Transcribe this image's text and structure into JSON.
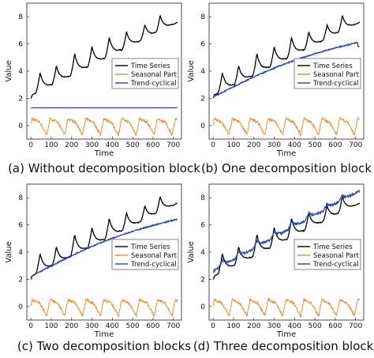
{
  "figure": {
    "colors": {
      "time_series": "#000000",
      "seasonal": "#ee8a2a",
      "trend": "#2244bb"
    }
  },
  "chart_data": [
    {
      "type": "line",
      "caption": "(a) Without decomposition block",
      "xlabel": "Time",
      "ylabel": "Value",
      "xlim": [
        -20,
        740
      ],
      "ylim": [
        -1,
        9
      ],
      "xticks": [
        0,
        100,
        200,
        300,
        400,
        500,
        600,
        700
      ],
      "yticks": [
        0,
        2,
        4,
        6,
        8
      ],
      "grid": false,
      "legend_position": "center-right",
      "series": [
        {
          "name": "Time Series",
          "color": "#000000"
        },
        {
          "name": "Seasonal Part",
          "color": "#ee8a2a"
        },
        {
          "name": "Trend-cyclical",
          "color": "#2244bb"
        }
      ],
      "trend_model": "flat",
      "trend_level": 1.3
    },
    {
      "type": "line",
      "caption": "(b) One decomposition block",
      "xlabel": "Time",
      "ylabel": "Value",
      "xlim": [
        -20,
        740
      ],
      "ylim": [
        -1,
        9
      ],
      "xticks": [
        0,
        100,
        200,
        300,
        400,
        500,
        600,
        700
      ],
      "yticks": [
        0,
        2,
        4,
        6,
        8
      ],
      "grid": false,
      "legend_position": "center-right",
      "series": [
        {
          "name": "Time Series",
          "color": "#000000"
        },
        {
          "name": "Seasonal Part",
          "color": "#ee8a2a"
        },
        {
          "name": "Trend-cyclical",
          "color": "#2244bb"
        }
      ],
      "trend_model": "smooth",
      "trend_start": 2.1,
      "trend_end": 6.6
    },
    {
      "type": "line",
      "caption": "(c) Two decomposition blocks",
      "xlabel": "Time",
      "ylabel": "Value",
      "xlim": [
        -20,
        740
      ],
      "ylim": [
        -1,
        9
      ],
      "xticks": [
        0,
        100,
        200,
        300,
        400,
        500,
        600,
        700
      ],
      "yticks": [
        0,
        2,
        4,
        6,
        8
      ],
      "grid": false,
      "legend_position": "lower-right",
      "series": [
        {
          "name": "Time Series",
          "color": "#000000"
        },
        {
          "name": "Seasonal Part",
          "color": "#ee8a2a"
        },
        {
          "name": "Trend-cyclical",
          "color": "#2244bb"
        }
      ],
      "trend_model": "smooth",
      "trend_start": 2.2,
      "trend_end": 6.9
    },
    {
      "type": "line",
      "caption": "(d) Three decomposition blocks",
      "xlabel": "Time",
      "ylabel": "Value",
      "xlim": [
        -20,
        740
      ],
      "ylim": [
        -1,
        9
      ],
      "xticks": [
        0,
        100,
        200,
        300,
        400,
        500,
        600,
        700
      ],
      "yticks": [
        0,
        2,
        4,
        6,
        8
      ],
      "grid": false,
      "legend_position": "lower-right",
      "series": [
        {
          "name": "Time Series",
          "color": "#000000"
        },
        {
          "name": "Seasonal Part",
          "color": "#ee8a2a"
        },
        {
          "name": "Trend-cyclical",
          "color": "#2244bb"
        }
      ],
      "trend_model": "follow",
      "trend_start": 2.6,
      "trend_end": 8.5
    }
  ]
}
